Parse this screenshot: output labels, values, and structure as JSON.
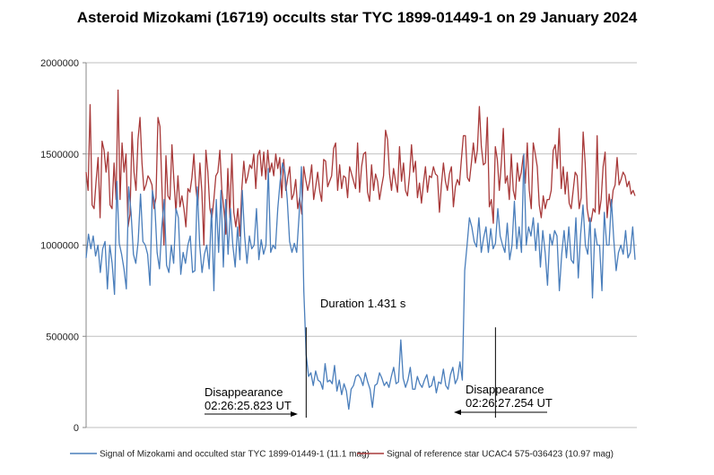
{
  "chart_data": {
    "type": "line",
    "title": "Asteroid Mizokami (16719) occults star TYC 1899-01449-1 on 29 January 2024",
    "xlabel": "",
    "ylabel": "",
    "ylim": [
      0,
      2000000
    ],
    "yticks": [
      "0",
      "500000",
      "1000000",
      "1500000",
      "2000000"
    ],
    "grid": true,
    "legend_position": "bottom",
    "colors": {
      "target": "#4a7ebb",
      "reference": "#a83a3a",
      "grid": "#bfbfbf"
    },
    "series": [
      {
        "name": "Signal of Mizokami and occulted star TYC 1899-01449-1 (11.1 mag)",
        "color": "#4a7ebb",
        "values": [
          930000,
          1060000,
          980000,
          1050000,
          940000,
          1000000,
          850000,
          980000,
          1020000,
          760000,
          1000000,
          900000,
          730000,
          1350000,
          1010000,
          950000,
          870000,
          760000,
          1320000,
          1180000,
          950000,
          900000,
          1020000,
          1280000,
          1020000,
          1000000,
          950000,
          780000,
          1300000,
          1230000,
          960000,
          870000,
          1100000,
          1250000,
          890000,
          850000,
          1000000,
          900000,
          1200000,
          1150000,
          840000,
          960000,
          900000,
          1000000,
          1050000,
          850000,
          860000,
          1320000,
          1000000,
          850000,
          950000,
          1000000,
          870000,
          1200000,
          750000,
          1250000,
          960000,
          1300000,
          880000,
          1250000,
          950000,
          1200000,
          1000000,
          880000,
          1100000,
          920000,
          1300000,
          1050000,
          900000,
          1050000,
          980000,
          1000000,
          1200000,
          920000,
          1030000,
          950000,
          1000000,
          1420000,
          960000,
          1000000,
          980000,
          1200000,
          1350000,
          1450000,
          1400000,
          1250000,
          1020000,
          960000,
          1010000,
          960000,
          1160000,
          1430000,
          750000,
          400000,
          280000,
          300000,
          230000,
          310000,
          260000,
          250000,
          210000,
          350000,
          250000,
          260000,
          240000,
          340000,
          200000,
          260000,
          180000,
          240000,
          200000,
          100000,
          210000,
          230000,
          280000,
          290000,
          270000,
          230000,
          300000,
          250000,
          210000,
          110000,
          230000,
          240000,
          300000,
          270000,
          230000,
          250000,
          220000,
          280000,
          330000,
          240000,
          250000,
          480000,
          270000,
          220000,
          260000,
          330000,
          210000,
          210000,
          280000,
          240000,
          220000,
          260000,
          290000,
          220000,
          230000,
          280000,
          190000,
          250000,
          240000,
          320000,
          230000,
          210000,
          290000,
          330000,
          240000,
          270000,
          360000,
          260000,
          860000,
          1000000,
          1150000,
          1100000,
          1020000,
          990000,
          1150000,
          960000,
          1040000,
          1100000,
          960000,
          1090000,
          980000,
          1010000,
          1200000,
          1050000,
          1000000,
          960000,
          1120000,
          920000,
          1000000,
          1240000,
          980000,
          1100000,
          960000,
          1500000,
          1000000,
          1100000,
          1050000,
          1150000,
          970000,
          1120000,
          880000,
          1080000,
          960000,
          780000,
          1060000,
          1000000,
          1080000,
          1050000,
          750000,
          950000,
          1080000,
          930000,
          1100000,
          920000,
          900000,
          1150000,
          820000,
          1060000,
          1220000,
          1000000,
          950000,
          1150000,
          710000,
          1090000,
          1000000,
          1000000,
          750000,
          1180000,
          1000000,
          1000000,
          1250000,
          1030000,
          860000,
          960000,
          1000000,
          950000,
          1080000,
          930000,
          960000,
          1100000,
          920000
        ]
      },
      {
        "name": "Signal of reference star UCAC4 575-036423 (10.97 mag)",
        "color": "#a83a3a",
        "values": [
          1400000,
          1300000,
          1770000,
          1220000,
          1200000,
          1350000,
          1480000,
          1150000,
          1570000,
          1520000,
          1400000,
          1510000,
          1220000,
          1200000,
          1450000,
          1250000,
          1850000,
          1250000,
          1560000,
          1400000,
          1500000,
          1100000,
          1170000,
          1620000,
          1400000,
          1300000,
          1580000,
          1700000,
          1450000,
          1300000,
          1330000,
          1380000,
          1360000,
          1330000,
          1200000,
          1260000,
          1700000,
          1650000,
          1310000,
          1000000,
          1490000,
          1270000,
          1250000,
          1550000,
          1350000,
          1180000,
          1380000,
          1210000,
          1270000,
          1200000,
          1100000,
          1310000,
          1290000,
          1370000,
          1500000,
          1310000,
          1220000,
          1450000,
          1290000,
          1000000,
          1520000,
          1400000,
          1200000,
          1150000,
          1250000,
          1380000,
          1400000,
          1520000,
          1300000,
          1200000,
          1060000,
          1420000,
          1150000,
          1500000,
          1180000,
          1100000,
          1200000,
          1050000,
          1310000,
          1460000,
          1340000,
          1380000,
          1440000,
          1420000,
          1500000,
          1310000,
          1490000,
          1520000,
          1380000,
          1510000,
          1360000,
          1520000,
          1400000,
          1450000,
          1380000,
          1500000,
          1420000,
          1480000,
          1260000,
          1470000,
          1300000,
          1370000,
          1430000,
          1250000,
          1280000,
          1360000,
          1200000,
          1260000,
          1170000,
          1430000,
          1360000,
          1300000,
          1350000,
          1440000,
          1250000,
          1320000,
          1400000,
          1300000,
          1240000,
          1470000,
          1460000,
          1320000,
          1350000,
          1380000,
          1530000,
          1560000,
          1300000,
          1440000,
          1310000,
          1380000,
          1370000,
          1260000,
          1430000,
          1390000,
          1350000,
          1310000,
          1560000,
          1290000,
          1430000,
          1500000,
          1510000,
          1290000,
          1240000,
          1440000,
          1300000,
          1390000,
          1350000,
          1250000,
          1320000,
          1380000,
          1630000,
          1580000,
          1390000,
          1300000,
          1420000,
          1350000,
          1290000,
          1540000,
          1350000,
          1450000,
          1300000,
          1270000,
          1380000,
          1550000,
          1400000,
          1460000,
          1260000,
          1340000,
          1230000,
          1340000,
          1430000,
          1290000,
          1380000,
          1370000,
          1430000,
          1390000,
          1380000,
          1180000,
          1330000,
          1450000,
          1350000,
          1300000,
          1390000,
          1430000,
          1210000,
          1320000,
          1360000,
          1330000,
          1470000,
          1600000,
          1600000,
          1370000,
          1350000,
          1450000,
          1560000,
          1450000,
          1520000,
          1760000,
          1540000,
          1440000,
          1450000,
          1700000,
          1210000,
          1250000,
          1120000,
          1540000,
          1470000,
          1300000,
          1450000,
          1640000,
          1340000,
          1380000,
          1250000,
          1500000,
          1300000,
          1250000,
          1450000,
          1350000,
          1400000,
          1490000,
          1340000,
          1560000,
          1300000,
          1200000,
          1560000,
          1500000,
          1430000,
          1220000,
          1150000,
          1270000,
          1200000,
          1250000,
          1250000,
          1300000,
          1520000,
          1550000,
          1420000,
          1640000,
          1310000,
          1430000,
          1280000,
          1400000,
          1230000,
          1200000,
          1300000,
          1400000,
          1380000,
          1200000,
          1260000,
          1620000,
          1450000,
          1200000,
          1130000,
          1130000,
          1200000,
          1180000,
          1600000,
          1170000,
          1250000,
          1430000,
          1510000,
          1150000,
          1280000,
          1190000,
          1300000,
          1330000,
          1480000,
          1330000,
          1360000,
          1400000,
          1380000,
          1320000,
          1350000,
          1280000,
          1300000,
          1270000
        ]
      }
    ],
    "annotations": {
      "duration": "Duration 1.431 s",
      "disappearance_label": "Disappearance",
      "disappearance_time": "02:26:25.823 UT",
      "reappearance_label": "Disappearance",
      "reappearance_time": "02:26:27.254 UT"
    },
    "event_index": {
      "disappearance": 93,
      "reappearance": 173
    }
  }
}
